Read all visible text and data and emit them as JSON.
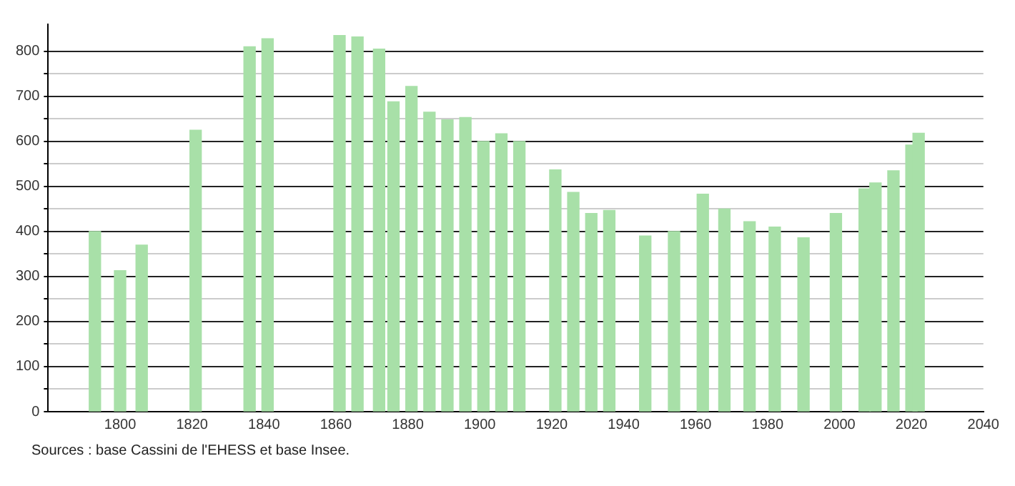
{
  "chart_data": {
    "type": "bar",
    "x": [
      1793,
      1800,
      1806,
      1821,
      1836,
      1841,
      1861,
      1866,
      1872,
      1876,
      1881,
      1886,
      1891,
      1896,
      1901,
      1906,
      1911,
      1921,
      1926,
      1931,
      1936,
      1946,
      1954,
      1962,
      1968,
      1975,
      1982,
      1990,
      1999,
      2007,
      2010,
      2015,
      2020,
      2022
    ],
    "values": [
      400,
      313,
      370,
      625,
      810,
      828,
      835,
      832,
      805,
      688,
      722,
      665,
      648,
      653,
      600,
      617,
      600,
      537,
      487,
      440,
      447,
      390,
      400,
      483,
      450,
      422,
      410,
      386,
      440,
      495,
      508,
      535,
      592,
      618
    ],
    "color": "#a8e0a8",
    "xlim": [
      1780,
      2040
    ],
    "xticks": [
      1800,
      1820,
      1840,
      1860,
      1880,
      1900,
      1920,
      1940,
      1960,
      1980,
      2000,
      2020,
      2040
    ],
    "ylim": [
      0,
      860
    ],
    "yticks": [
      0,
      {
        "value": 50,
        "label": null
      },
      100,
      {
        "value": 150,
        "label": null
      },
      200,
      {
        "value": 250,
        "label": null
      },
      300,
      {
        "value": 350,
        "label": null
      },
      400,
      {
        "value": 450,
        "label": null
      },
      500,
      {
        "value": 550,
        "label": null
      },
      600,
      {
        "value": 650,
        "label": null
      },
      700,
      {
        "value": 750,
        "label": null
      },
      800
    ],
    "grid": "y",
    "legend": false,
    "annotations": [
      "Sources : base Cassini de l'EHESS et base Insee."
    ]
  }
}
